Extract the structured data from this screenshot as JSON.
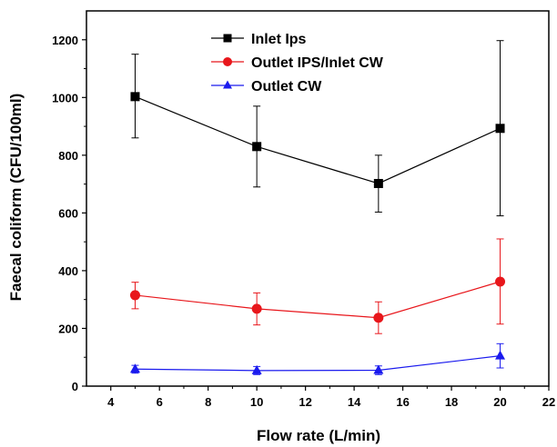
{
  "chart_data": {
    "type": "line",
    "xlabel": "Flow rate (L/min)",
    "ylabel": "Faecal coliform (CFU/100ml)",
    "xlim": [
      3,
      22
    ],
    "ylim": [
      0,
      1300
    ],
    "x_ticks": [
      "4",
      "6",
      "8",
      "10",
      "12",
      "14",
      "16",
      "18",
      "20",
      "22"
    ],
    "y_ticks": [
      "0",
      "200",
      "400",
      "600",
      "800",
      "1000",
      "1200"
    ],
    "x": [
      5,
      10,
      15,
      20
    ],
    "series": [
      {
        "name": "Inlet Ips",
        "marker": "square",
        "color": "#000000",
        "values": [
          1003,
          830,
          702,
          893
        ],
        "error_low": [
          860,
          690,
          603,
          590
        ],
        "error_high": [
          1150,
          970,
          800,
          1197
        ]
      },
      {
        "name": "Outlet IPS/Inlet CW",
        "marker": "circle",
        "color": "#e8161b",
        "values": [
          315,
          268,
          237,
          362
        ],
        "error_low": [
          268,
          212,
          182,
          215
        ],
        "error_high": [
          360,
          323,
          292,
          510
        ]
      },
      {
        "name": "Outlet CW",
        "marker": "triangle",
        "color": "#1a1aee",
        "values": [
          59,
          54,
          55,
          105
        ],
        "error_low": [
          45,
          40,
          40,
          63
        ],
        "error_high": [
          72,
          68,
          70,
          147
        ]
      }
    ],
    "legend_position": "top-center",
    "grid": false
  }
}
